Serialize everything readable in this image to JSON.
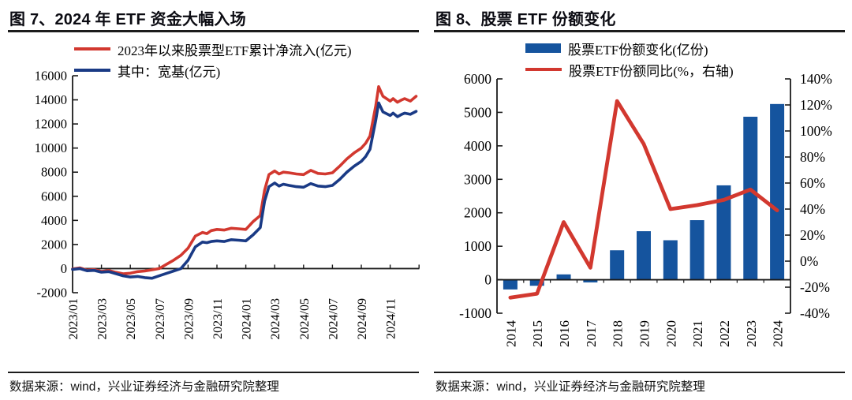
{
  "colors": {
    "red_line": "#D2382F",
    "navy_line": "#1A3A85",
    "bar_blue": "#15549E",
    "axis": "#1b1b1b"
  },
  "chart_data": [
    {
      "id": "fig7",
      "type": "line",
      "title": "图 7、2024 年 ETF 资金大幅入场",
      "source": "数据来源：wind，兴业证券经济与金融研究院整理",
      "x_tick_labels": [
        "2023/01",
        "2023/03",
        "2023/05",
        "2023/07",
        "2023/09",
        "2023/11",
        "2024/01",
        "2024/03",
        "2024/05",
        "2024/07",
        "2024/09",
        "2024/11"
      ],
      "yticks": [
        16000,
        14000,
        12000,
        10000,
        8000,
        6000,
        4000,
        2000,
        0,
        -2000
      ],
      "ylim": [
        -2000,
        16000
      ],
      "x_is_months_since_2023_01": true,
      "series": [
        {
          "name": "2023年以来股票型ETF累计净流入(亿元)",
          "color": "#D2382F",
          "x": [
            0,
            0.5,
            1,
            1.5,
            2,
            2.5,
            3,
            3.5,
            4,
            4.5,
            5,
            5.5,
            6,
            6.5,
            7,
            7.5,
            8,
            8.5,
            9,
            9.3,
            9.6,
            10,
            10.5,
            11,
            11.5,
            12,
            12.5,
            13,
            13.3,
            13.6,
            14,
            14.3,
            14.6,
            15,
            15.5,
            16,
            16.5,
            17,
            17.5,
            18,
            18.5,
            19,
            19.5,
            20,
            20.3,
            20.6,
            21,
            21.2,
            21.5,
            22,
            22.2,
            22.5,
            22.8,
            23,
            23.4,
            23.8
          ],
          "values": [
            -30,
            60,
            -120,
            -80,
            -230,
            -160,
            -310,
            -430,
            -380,
            -250,
            -200,
            -100,
            0,
            350,
            700,
            1100,
            1700,
            2700,
            3000,
            2900,
            3150,
            3250,
            3200,
            3350,
            3300,
            3250,
            3900,
            4400,
            6500,
            7800,
            8100,
            7850,
            8000,
            7950,
            7850,
            7800,
            8150,
            7900,
            7850,
            7950,
            8500,
            9100,
            9600,
            10000,
            10400,
            11000,
            13500,
            15100,
            14300,
            13900,
            14100,
            13800,
            14000,
            14100,
            13900,
            14300
          ]
        },
        {
          "name": "其中：宽基(亿元)",
          "color": "#1A3A85",
          "x": [
            0,
            0.5,
            1,
            1.5,
            2,
            2.5,
            3,
            3.5,
            4,
            4.5,
            5,
            5.5,
            6,
            6.5,
            7,
            7.5,
            8,
            8.5,
            9,
            9.3,
            9.6,
            10,
            10.5,
            11,
            11.5,
            12,
            12.5,
            13,
            13.3,
            13.6,
            14,
            14.3,
            14.6,
            15,
            15.5,
            16,
            16.5,
            17,
            17.5,
            18,
            18.5,
            19,
            19.5,
            20,
            20.3,
            20.6,
            21,
            21.2,
            21.5,
            22,
            22.2,
            22.5,
            22.8,
            23,
            23.4,
            23.8
          ],
          "values": [
            -60,
            0,
            -180,
            -150,
            -300,
            -250,
            -420,
            -600,
            -700,
            -650,
            -750,
            -800,
            -600,
            -400,
            -200,
            0,
            700,
            1800,
            2200,
            2150,
            2250,
            2300,
            2250,
            2400,
            2350,
            2300,
            2800,
            3400,
            5600,
            6800,
            7100,
            6850,
            7000,
            6900,
            6800,
            6750,
            7050,
            6850,
            6800,
            6900,
            7400,
            8000,
            8500,
            8900,
            9300,
            9900,
            12300,
            13750,
            13000,
            12700,
            12900,
            12600,
            12800,
            12900,
            12800,
            13050
          ]
        }
      ]
    },
    {
      "id": "fig8",
      "type": "bar+line",
      "title": "图 8、股票 ETF 份额变化",
      "source": "数据来源：wind，兴业证券经济与金融研究院整理",
      "categories": [
        "2014",
        "2015",
        "2016",
        "2017",
        "2018",
        "2019",
        "2020",
        "2021",
        "2022",
        "2023",
        "2024"
      ],
      "yticks_left": [
        6000,
        5000,
        4000,
        3000,
        2000,
        1000,
        0,
        -1000
      ],
      "yticks_right": [
        "140%",
        "120%",
        "100%",
        "80%",
        "60%",
        "40%",
        "20%",
        "0%",
        "-20%",
        "-40%"
      ],
      "ylim_left": [
        -1000,
        6000
      ],
      "ylim_right_pct": [
        -40,
        140
      ],
      "bar_series": {
        "name": "股票ETF份额变化(亿份)",
        "color": "#15549E",
        "values": [
          -290,
          -180,
          160,
          -80,
          880,
          1450,
          1180,
          1780,
          2820,
          4870,
          5250
        ]
      },
      "line_series": {
        "name": "股票ETF份额同比(%，右轴)",
        "color": "#D2382F",
        "values": [
          -28,
          -25,
          30,
          -5,
          123,
          90,
          40,
          43,
          47,
          55,
          39
        ]
      }
    }
  ]
}
